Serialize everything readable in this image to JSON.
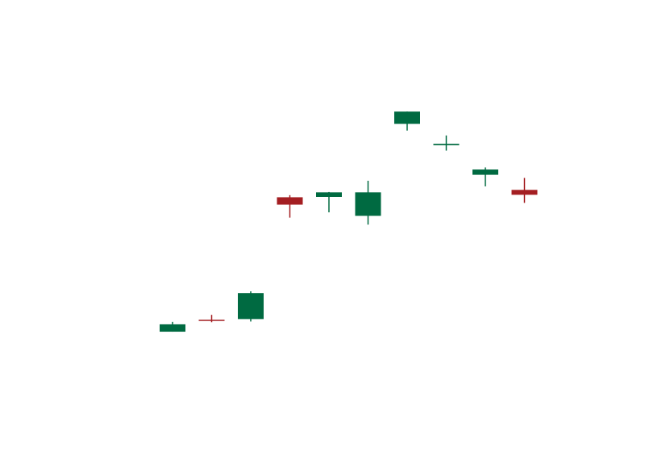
{
  "chart_data": {
    "type": "candlestick",
    "title": "",
    "xlabel": "",
    "ylabel": "",
    "ylim": [
      0,
      100
    ],
    "grid": false,
    "legend": "none",
    "colors": {
      "up": "#006a41",
      "down": "#a41e22"
    },
    "candles": [
      {
        "open": 21.6,
        "high": 24.4,
        "low": 21.6,
        "close": 23.7,
        "direction": "up"
      },
      {
        "open": 25.0,
        "high": 26.4,
        "low": 24.3,
        "close": 24.8,
        "direction": "down"
      },
      {
        "open": 25.2,
        "high": 33.1,
        "low": 24.5,
        "close": 32.6,
        "direction": "up"
      },
      {
        "open": 59.9,
        "high": 60.5,
        "low": 54.1,
        "close": 57.8,
        "direction": "down"
      },
      {
        "open": 60.0,
        "high": 61.4,
        "low": 55.6,
        "close": 61.3,
        "direction": "up"
      },
      {
        "open": 54.6,
        "high": 64.6,
        "low": 52.1,
        "close": 61.3,
        "direction": "up"
      },
      {
        "open": 80.8,
        "high": 84.3,
        "low": 78.9,
        "close": 84.3,
        "direction": "up"
      },
      {
        "open": 74.7,
        "high": 77.5,
        "low": 73.2,
        "close": 75.1,
        "direction": "up"
      },
      {
        "open": 66.3,
        "high": 68.4,
        "low": 63.0,
        "close": 67.8,
        "direction": "up"
      },
      {
        "open": 62.0,
        "high": 65.4,
        "low": 58.3,
        "close": 60.6,
        "direction": "down"
      }
    ]
  }
}
